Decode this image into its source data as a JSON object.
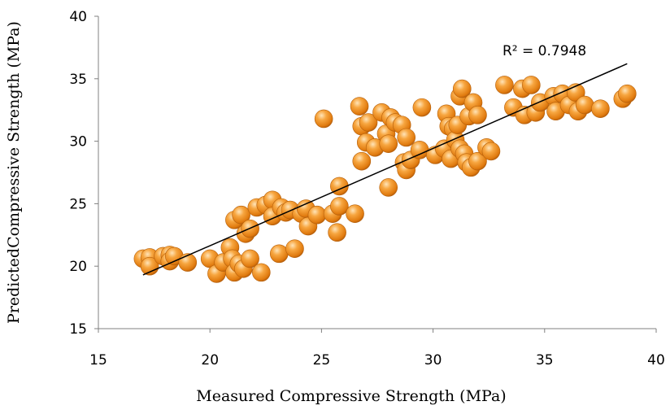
{
  "chart_data": {
    "type": "scatter",
    "title": "",
    "xlabel": "Measured Compressive Strength (MPa)",
    "ylabel": "PredictedCompressive Strength (MPa)",
    "xlim": [
      15,
      40
    ],
    "ylim": [
      15,
      40
    ],
    "xticks": [
      "15",
      "20",
      "25",
      "30",
      "35",
      "40"
    ],
    "yticks": [
      "15",
      "20",
      "25",
      "30",
      "35",
      "40"
    ],
    "grid": false,
    "legend": "none",
    "marker_color": "#F39A2B",
    "trendline": {
      "type": "linear",
      "x": [
        17.0,
        38.7
      ],
      "y": [
        19.3,
        36.2
      ],
      "color": "#000000"
    },
    "annotation": "R² = 0.7948",
    "series": [
      {
        "points": [
          [
            17.0,
            20.6
          ],
          [
            17.3,
            20.7
          ],
          [
            17.3,
            20.0
          ],
          [
            17.9,
            20.8
          ],
          [
            18.2,
            20.9
          ],
          [
            18.2,
            20.4
          ],
          [
            18.4,
            20.8
          ],
          [
            19.0,
            20.3
          ],
          [
            20.0,
            20.6
          ],
          [
            20.3,
            19.4
          ],
          [
            20.6,
            20.3
          ],
          [
            20.9,
            21.5
          ],
          [
            21.0,
            20.6
          ],
          [
            21.1,
            19.5
          ],
          [
            21.3,
            20.2
          ],
          [
            21.5,
            19.8
          ],
          [
            21.8,
            20.6
          ],
          [
            22.3,
            19.5
          ],
          [
            23.1,
            21.0
          ],
          [
            23.8,
            21.4
          ],
          [
            25.7,
            22.7
          ],
          [
            21.1,
            23.7
          ],
          [
            21.4,
            24.1
          ],
          [
            21.6,
            22.6
          ],
          [
            21.8,
            23.0
          ],
          [
            22.1,
            24.7
          ],
          [
            22.5,
            24.9
          ],
          [
            22.8,
            25.3
          ],
          [
            22.8,
            24.0
          ],
          [
            23.2,
            24.7
          ],
          [
            23.4,
            24.3
          ],
          [
            23.6,
            24.5
          ],
          [
            24.1,
            24.2
          ],
          [
            24.3,
            24.6
          ],
          [
            24.4,
            23.2
          ],
          [
            24.8,
            24.1
          ],
          [
            25.5,
            24.2
          ],
          [
            25.8,
            26.4
          ],
          [
            25.8,
            24.8
          ],
          [
            26.5,
            24.2
          ],
          [
            25.1,
            31.8
          ],
          [
            26.7,
            32.8
          ],
          [
            26.8,
            31.2
          ],
          [
            26.8,
            28.4
          ],
          [
            27.0,
            29.9
          ],
          [
            27.1,
            31.5
          ],
          [
            27.4,
            29.5
          ],
          [
            27.7,
            32.3
          ],
          [
            27.9,
            30.6
          ],
          [
            28.0,
            29.8
          ],
          [
            28.0,
            26.3
          ],
          [
            28.1,
            31.9
          ],
          [
            28.3,
            31.5
          ],
          [
            28.6,
            31.3
          ],
          [
            28.7,
            28.3
          ],
          [
            28.8,
            30.3
          ],
          [
            28.8,
            27.7
          ],
          [
            29.0,
            28.5
          ],
          [
            29.4,
            29.3
          ],
          [
            29.5,
            32.7
          ],
          [
            30.1,
            28.9
          ],
          [
            30.5,
            29.4
          ],
          [
            30.6,
            32.2
          ],
          [
            30.7,
            31.2
          ],
          [
            30.8,
            28.6
          ],
          [
            30.9,
            31.0
          ],
          [
            31.0,
            30.1
          ],
          [
            31.1,
            31.3
          ],
          [
            31.2,
            33.6
          ],
          [
            31.2,
            29.4
          ],
          [
            31.3,
            34.2
          ],
          [
            31.4,
            29.0
          ],
          [
            31.5,
            28.3
          ],
          [
            31.6,
            32.0
          ],
          [
            31.7,
            27.9
          ],
          [
            31.8,
            33.1
          ],
          [
            32.0,
            32.1
          ],
          [
            32.0,
            28.4
          ],
          [
            32.4,
            29.5
          ],
          [
            32.6,
            29.2
          ],
          [
            33.2,
            34.5
          ],
          [
            33.6,
            32.7
          ],
          [
            34.0,
            34.2
          ],
          [
            34.1,
            32.1
          ],
          [
            34.4,
            34.5
          ],
          [
            34.6,
            32.3
          ],
          [
            34.8,
            33.1
          ],
          [
            35.4,
            33.6
          ],
          [
            35.5,
            32.4
          ],
          [
            35.8,
            33.8
          ],
          [
            36.1,
            32.9
          ],
          [
            36.4,
            33.9
          ],
          [
            36.5,
            32.4
          ],
          [
            36.8,
            32.9
          ],
          [
            37.5,
            32.6
          ],
          [
            38.5,
            33.4
          ],
          [
            38.7,
            33.8
          ]
        ]
      }
    ]
  }
}
